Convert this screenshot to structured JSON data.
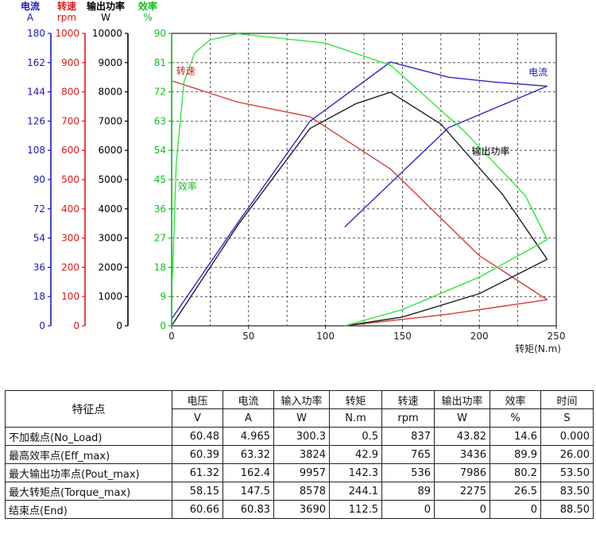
{
  "chart_data": {
    "type": "line",
    "x_axis": {
      "label": "转矩(N.m)",
      "min": 0,
      "max": 250,
      "ticks": [
        0,
        50,
        100,
        150,
        200,
        250
      ]
    },
    "y_axes": [
      {
        "name": "电流",
        "unit": "A",
        "color": "#1a1ab4",
        "max": 180,
        "ticks": [
          0,
          18,
          36,
          54,
          72,
          90,
          108,
          126,
          144,
          162,
          180
        ]
      },
      {
        "name": "转速",
        "unit": "rpm",
        "color": "#e01818",
        "max": 1000,
        "ticks": [
          0,
          100,
          200,
          300,
          400,
          500,
          600,
          700,
          800,
          900,
          1000
        ]
      },
      {
        "name": "输出功率",
        "unit": "W",
        "color": "#000000",
        "max": 10000,
        "ticks": [
          0,
          1000,
          2000,
          3000,
          4000,
          5000,
          6000,
          7000,
          8000,
          9000,
          10000
        ]
      },
      {
        "name": "效率",
        "unit": "%",
        "color": "#10c020",
        "max": 90,
        "ticks": [
          0,
          9,
          18,
          27,
          36,
          45,
          54,
          63,
          72,
          81,
          90
        ]
      }
    ],
    "grid": true,
    "series": [
      {
        "name": "转速",
        "axis": 1,
        "color": "#d83a3a",
        "points": [
          [
            0.5,
            837
          ],
          [
            42.9,
            765
          ],
          [
            90,
            715
          ],
          [
            142.3,
            536
          ],
          [
            200,
            240
          ],
          [
            244.1,
            89
          ]
        ],
        "return_points": [
          [
            244.1,
            89
          ],
          [
            180,
            40
          ],
          [
            112.5,
            0
          ]
        ]
      },
      {
        "name": "电流",
        "axis": 0,
        "color": "#2a2ac8",
        "points": [
          [
            0.5,
            4.965
          ],
          [
            42.9,
            63.32
          ],
          [
            90,
            126
          ],
          [
            142.3,
            162.4
          ],
          [
            180,
            153
          ],
          [
            210,
            150
          ],
          [
            244.1,
            147.5
          ]
        ],
        "return_points": [
          [
            244.1,
            147.5
          ],
          [
            180,
            122
          ],
          [
            112.5,
            60.83
          ]
        ]
      },
      {
        "name": "输出功率",
        "axis": 2,
        "color": "#222222",
        "points": [
          [
            0.5,
            43.82
          ],
          [
            42.9,
            3436
          ],
          [
            90,
            6750
          ],
          [
            120,
            7600
          ],
          [
            142.3,
            7986
          ],
          [
            175,
            6900
          ],
          [
            215,
            4500
          ],
          [
            244.1,
            2275
          ]
        ],
        "return_points": [
          [
            244.1,
            2275
          ],
          [
            200,
            1100
          ],
          [
            150,
            300
          ],
          [
            112.5,
            0
          ]
        ]
      },
      {
        "name": "效率",
        "axis": 3,
        "color": "#2ee840",
        "points": [
          [
            0.5,
            14.6
          ],
          [
            3,
            50
          ],
          [
            8,
            75
          ],
          [
            15,
            84
          ],
          [
            25,
            88
          ],
          [
            42.9,
            89.9
          ],
          [
            100,
            87
          ],
          [
            142.3,
            80.2
          ],
          [
            190,
            60
          ],
          [
            230,
            40
          ],
          [
            244.1,
            26.5
          ]
        ],
        "return_points": [
          [
            244.1,
            26.5
          ],
          [
            200,
            15
          ],
          [
            150,
            5
          ],
          [
            112.5,
            0
          ]
        ]
      }
    ],
    "series_labels": [
      {
        "text": "转速",
        "color": "#e01818",
        "x": 3,
        "y_axis": 1,
        "y": 860
      },
      {
        "text": "电流",
        "color": "#1a1ab4",
        "x": 232,
        "y_axis": 0,
        "y": 154
      },
      {
        "text": "输出功率",
        "color": "#000000",
        "x": 195,
        "y_axis": 2,
        "y": 5850
      },
      {
        "text": "效率",
        "color": "#10c020",
        "x": 4,
        "y_axis": 3,
        "y": 42
      }
    ]
  },
  "table": {
    "corner": "特征点",
    "headers": [
      "电压",
      "电流",
      "输入功率",
      "转矩",
      "转速",
      "输出功率",
      "效率",
      "时间"
    ],
    "units": [
      "V",
      "A",
      "W",
      "N.m",
      "rpm",
      "W",
      "%",
      "S"
    ],
    "rows": [
      {
        "name": "不加载点(No_Load)",
        "values": [
          "60.48",
          "4.965",
          "300.3",
          "0.5",
          "837",
          "43.82",
          "14.6",
          "0.000"
        ]
      },
      {
        "name": "最高效率点(Eff_max)",
        "values": [
          "60.39",
          "63.32",
          "3824",
          "42.9",
          "765",
          "3436",
          "89.9",
          "26.00"
        ]
      },
      {
        "name": "最大输出功率点(Pout_max)",
        "values": [
          "61.32",
          "162.4",
          "9957",
          "142.3",
          "536",
          "7986",
          "80.2",
          "53.50"
        ]
      },
      {
        "name": "最大转矩点(Torque_max)",
        "values": [
          "58.15",
          "147.5",
          "8578",
          "244.1",
          "89",
          "2275",
          "26.5",
          "83.50"
        ]
      },
      {
        "name": "结束点(End)",
        "values": [
          "60.66",
          "60.83",
          "3690",
          "112.5",
          "0",
          "0",
          "0",
          "88.50"
        ]
      }
    ]
  }
}
